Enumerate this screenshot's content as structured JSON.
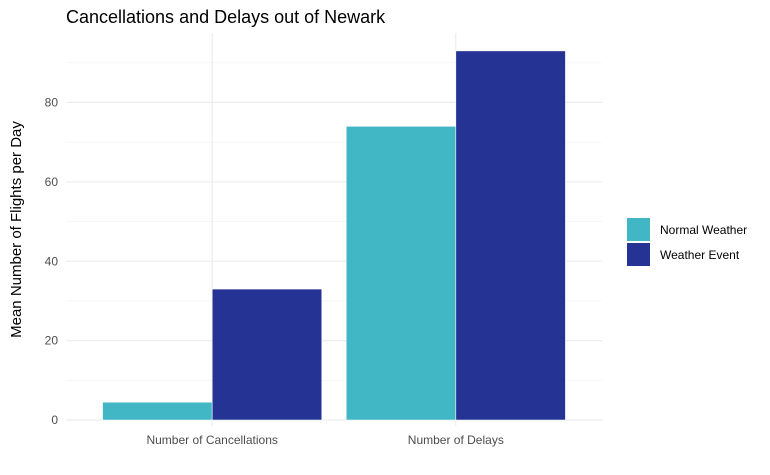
{
  "chart_data": {
    "type": "bar",
    "title": "Cancellations and Delays out of Newark",
    "xlabel": "",
    "ylabel": "Mean Number of Flights per Day",
    "categories": [
      "Number of Cancellations",
      "Number of Delays"
    ],
    "series": [
      {
        "name": "Normal Weather",
        "values": [
          4.5,
          74
        ],
        "color": "#41b6c4"
      },
      {
        "name": "Weather Event",
        "values": [
          33,
          93
        ],
        "color": "#253494"
      }
    ],
    "ylim": [
      -1.5,
      97.5
    ],
    "yticks": [
      0,
      20,
      40,
      60,
      80
    ],
    "ytick_labels": [
      "0",
      "20",
      "40",
      "60",
      "80"
    ],
    "grid": true,
    "legend_position": "right",
    "theme": "minimal"
  }
}
